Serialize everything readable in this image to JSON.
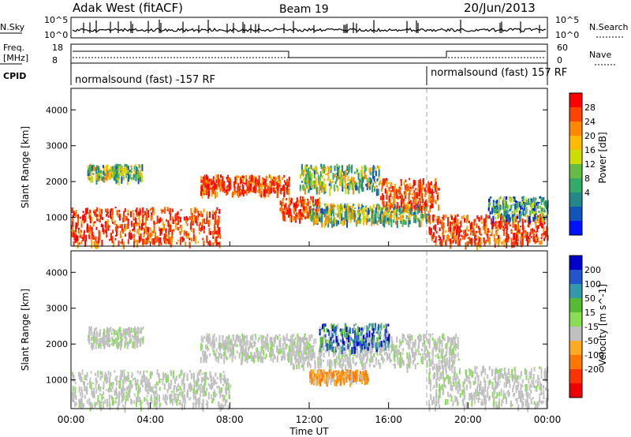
{
  "header": {
    "title": "Adak West (fitACF)",
    "beam": "Beam 19",
    "date": "20/Jun/2013"
  },
  "status_panels": {
    "nsky": {
      "label": "N.Sky",
      "ticks": [
        "10^5",
        "10^0"
      ]
    },
    "nsearch": {
      "label": "N.Search",
      "ticks": [
        "10^5",
        "10^0"
      ]
    },
    "freq": {
      "label_lines": [
        "Freq.",
        "[MHz]"
      ],
      "ticks": [
        "18",
        "8"
      ]
    },
    "nave": {
      "label": "Nave",
      "ticks": [
        "60",
        "0"
      ]
    },
    "cpid": {
      "label": "CPID",
      "segments": [
        "normalsound (fast) -157 RF",
        "normalsound (fast) 157 RF"
      ]
    }
  },
  "chart_data": [
    {
      "type": "heatmap",
      "name": "power",
      "ylabel": "Slant Range [km]",
      "yticks": [
        1000,
        2000,
        3000,
        4000
      ],
      "ylim": [
        200,
        4600
      ],
      "xlim": [
        0,
        24
      ],
      "colorbar": {
        "label": "Power [dB]",
        "ticks": [
          "28",
          "24",
          "20",
          "16",
          "12",
          "8",
          "4"
        ],
        "colors": [
          "#ff0000",
          "#ff4400",
          "#ff8800",
          "#ffbb00",
          "#ccdd00",
          "#66bb44",
          "#33aa66",
          "#228888",
          "#1155bb",
          "#0011ff"
        ]
      },
      "echo_bands": [
        {
          "t_start": 0.0,
          "t_end": 7.5,
          "r_start": 300,
          "r_end": 1300,
          "level": "high"
        },
        {
          "t_start": 0.8,
          "t_end": 3.6,
          "r_start": 2100,
          "r_end": 2500,
          "level": "mid"
        },
        {
          "t_start": 6.5,
          "t_end": 11.0,
          "r_start": 1700,
          "r_end": 2200,
          "level": "high"
        },
        {
          "t_start": 10.5,
          "t_end": 12.5,
          "r_start": 1000,
          "r_end": 1600,
          "level": "high"
        },
        {
          "t_start": 11.5,
          "t_end": 15.5,
          "r_start": 1800,
          "r_end": 2500,
          "level": "mid"
        },
        {
          "t_start": 12.0,
          "t_end": 18.0,
          "r_start": 900,
          "r_end": 1400,
          "level": "mid"
        },
        {
          "t_start": 15.5,
          "t_end": 18.5,
          "r_start": 1300,
          "r_end": 2100,
          "level": "high"
        },
        {
          "t_start": 18.0,
          "t_end": 24.0,
          "r_start": 300,
          "r_end": 1100,
          "level": "high"
        },
        {
          "t_start": 21.0,
          "t_end": 24.0,
          "r_start": 1000,
          "r_end": 1600,
          "level": "low"
        }
      ]
    },
    {
      "type": "heatmap",
      "name": "velocity",
      "ylabel": "Slant Range [km]",
      "xlabel": "Time UT",
      "yticks": [
        1000,
        2000,
        3000,
        4000
      ],
      "xticks": [
        "00:00",
        "04:00",
        "08:00",
        "12:00",
        "16:00",
        "20:00",
        "00:00"
      ],
      "ylim": [
        200,
        4600
      ],
      "xlim": [
        0,
        24
      ],
      "colorbar": {
        "label": "Velocity [m s^-1]",
        "ticks": [
          "200",
          "100",
          "50",
          "15",
          "-15",
          "-50",
          "-100",
          "-200"
        ],
        "colors": [
          "#0000cc",
          "#2255cc",
          "#3399aa",
          "#55bb33",
          "#88dd55",
          "#c0c0c0",
          "#ffaa22",
          "#ff7700",
          "#ff3300",
          "#ee0000"
        ]
      },
      "echo_bands": [
        {
          "t_start": 0.0,
          "t_end": 8.0,
          "r_start": 300,
          "r_end": 1300,
          "level": "ground"
        },
        {
          "t_start": 0.8,
          "t_end": 3.6,
          "r_start": 2000,
          "r_end": 2500,
          "level": "ground"
        },
        {
          "t_start": 6.5,
          "t_end": 12.0,
          "r_start": 1600,
          "r_end": 2300,
          "level": "ground"
        },
        {
          "t_start": 11.0,
          "t_end": 19.5,
          "r_start": 1400,
          "r_end": 2300,
          "level": "ground"
        },
        {
          "t_start": 12.5,
          "t_end": 16.0,
          "r_start": 1900,
          "r_end": 2600,
          "level": "away"
        },
        {
          "t_start": 12.0,
          "t_end": 15.0,
          "r_start": 1000,
          "r_end": 1300,
          "level": "toward"
        },
        {
          "t_start": 18.0,
          "t_end": 24.0,
          "r_start": 300,
          "r_end": 1400,
          "level": "ground"
        }
      ]
    }
  ]
}
